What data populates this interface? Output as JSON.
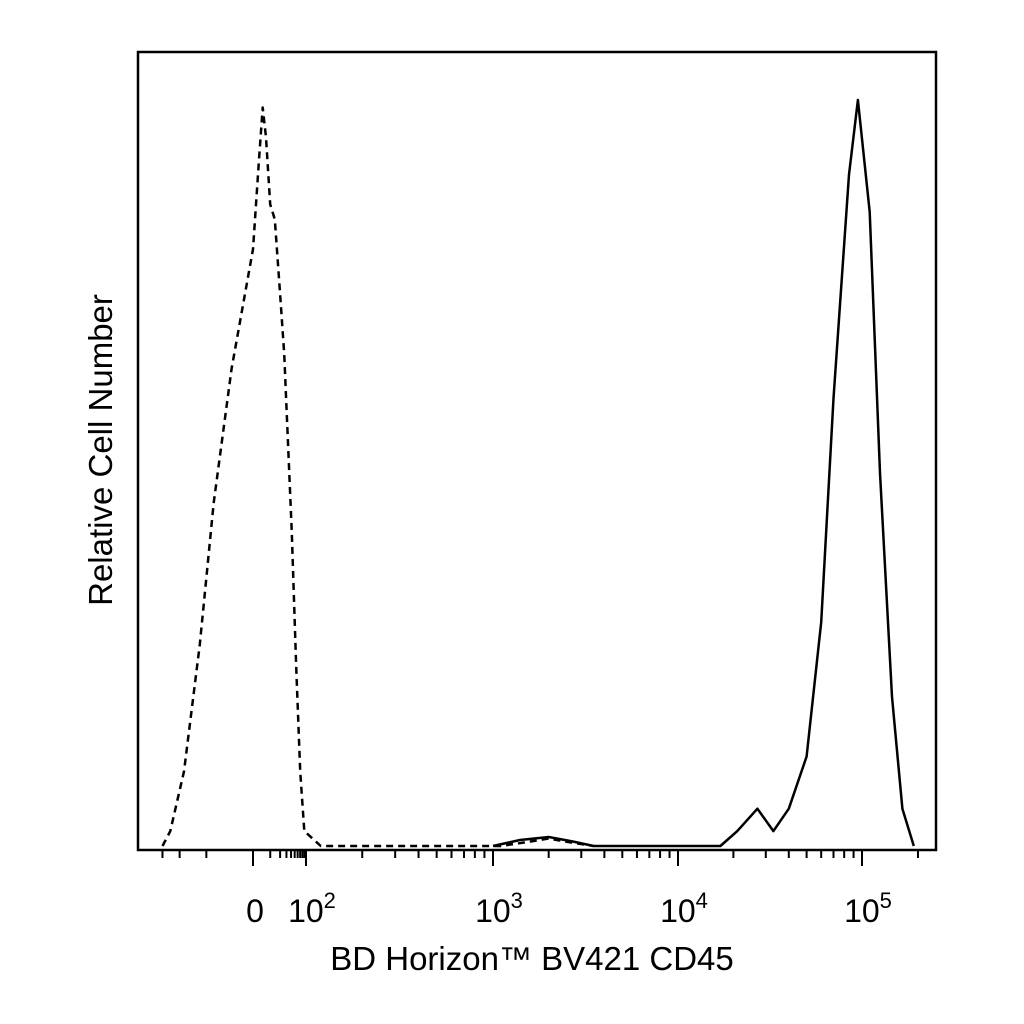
{
  "chart_data": {
    "type": "line",
    "title": "",
    "xlabel": "BD Horizon™ BV421 CD45",
    "ylabel": "Relative Cell Number",
    "x_scale": "biexponential",
    "xlim": [
      -40,
      250000
    ],
    "ylim": [
      0,
      1
    ],
    "grid": false,
    "legend": "none",
    "x_ticks": [
      {
        "value": 0,
        "label": "0"
      },
      {
        "value": 100,
        "base": "10",
        "exp": "2"
      },
      {
        "value": 1000,
        "base": "10",
        "exp": "3"
      },
      {
        "value": 10000,
        "base": "10",
        "exp": "4"
      },
      {
        "value": 100000,
        "base": "10",
        "exp": "5"
      }
    ],
    "series": [
      {
        "style": "dashed",
        "color": "#000000",
        "points": [
          [
            -30,
            0
          ],
          [
            -25,
            0.02
          ],
          [
            -18,
            0.1
          ],
          [
            -12,
            0.27
          ],
          [
            -8,
            0.46
          ],
          [
            -4,
            0.64
          ],
          [
            0,
            0.8
          ],
          [
            3,
            0.92
          ],
          [
            5,
            0.99
          ],
          [
            7,
            0.95
          ],
          [
            10,
            0.86
          ],
          [
            14,
            0.84
          ],
          [
            20,
            0.74
          ],
          [
            26,
            0.66
          ],
          [
            33,
            0.54
          ],
          [
            42,
            0.42
          ],
          [
            55,
            0.24
          ],
          [
            70,
            0.1
          ],
          [
            90,
            0.02
          ],
          [
            120,
            0.0
          ],
          [
            1100,
            0.0
          ],
          [
            1500,
            0.005
          ],
          [
            2000,
            0.01
          ],
          [
            2600,
            0.005
          ],
          [
            3500,
            0.0
          ]
        ]
      },
      {
        "style": "solid",
        "color": "#000000",
        "points": [
          [
            1000,
            0.0
          ],
          [
            1400,
            0.008
          ],
          [
            2000,
            0.012
          ],
          [
            2700,
            0.006
          ],
          [
            3500,
            0.0
          ],
          [
            17000,
            0.0
          ],
          [
            21000,
            0.02
          ],
          [
            27000,
            0.05
          ],
          [
            33000,
            0.02
          ],
          [
            40000,
            0.05
          ],
          [
            50000,
            0.12
          ],
          [
            60000,
            0.3
          ],
          [
            70000,
            0.6
          ],
          [
            85000,
            0.9
          ],
          [
            95000,
            1.0
          ],
          [
            110000,
            0.85
          ],
          [
            125000,
            0.5
          ],
          [
            145000,
            0.2
          ],
          [
            165000,
            0.05
          ],
          [
            190000,
            0.0
          ]
        ]
      }
    ]
  }
}
